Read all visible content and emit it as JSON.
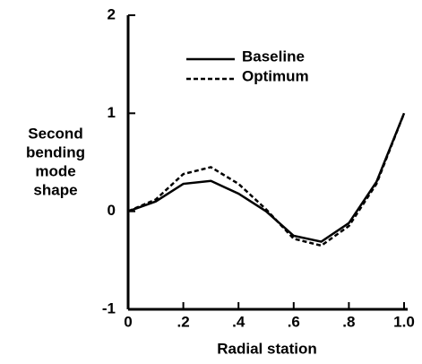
{
  "chart_data": {
    "type": "line",
    "xlabel": "Radial station",
    "ylabel": [
      "Second",
      "bending",
      "mode",
      "shape"
    ],
    "x": [
      0,
      0.1,
      0.2,
      0.3,
      0.4,
      0.5,
      0.6,
      0.7,
      0.8,
      0.9,
      1.0
    ],
    "series": [
      {
        "name": "Baseline",
        "color": "#000000",
        "dash": "solid",
        "values": [
          0,
          0.1,
          0.28,
          0.31,
          0.18,
          0,
          -0.25,
          -0.31,
          -0.12,
          0.3,
          1.0
        ]
      },
      {
        "name": "Optimum",
        "color": "#000000",
        "dash": "dashed",
        "values": [
          0,
          0.12,
          0.38,
          0.45,
          0.28,
          0.02,
          -0.28,
          -0.35,
          -0.15,
          0.28,
          1.0
        ]
      }
    ],
    "xlim": [
      0,
      1
    ],
    "ylim": [
      -1,
      2
    ],
    "xticks": [
      0,
      {
        "value": 0.2,
        "label": ".2"
      },
      {
        "value": 0.4,
        "label": ".4"
      },
      {
        "value": 0.6,
        "label": ".6"
      },
      {
        "value": 0.8,
        "label": ".8"
      },
      {
        "value": 1,
        "label": "1.0"
      }
    ],
    "yticks": [
      -1,
      0,
      1,
      2
    ],
    "grid": false,
    "legend": "upper center"
  }
}
